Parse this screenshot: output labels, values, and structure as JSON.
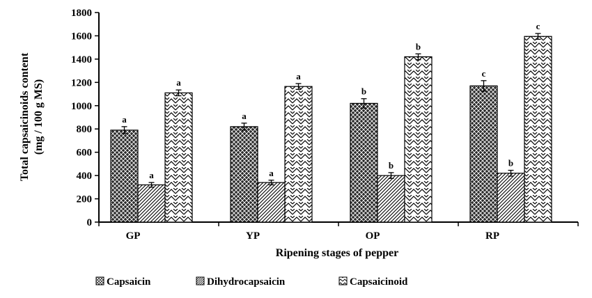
{
  "chart_data": {
    "type": "bar",
    "title": "",
    "xlabel": "Ripening stages of pepper",
    "ylabel_line1": "Total capsaicinoids content",
    "ylabel_line2": "(mg / 100 g MS)",
    "ylim": [
      0,
      1800
    ],
    "yticks": [
      0,
      200,
      400,
      600,
      800,
      1000,
      1200,
      1400,
      1600,
      1800
    ],
    "grid": false,
    "legend_position": "bottom",
    "categories": [
      "GP",
      "YP",
      "OP",
      "RP"
    ],
    "series": [
      {
        "name": "Capsaicin",
        "pattern": "crosshatch-dark",
        "values": [
          790,
          820,
          1020,
          1170
        ],
        "errors": [
          30,
          30,
          40,
          45
        ],
        "letters": [
          "a",
          "a",
          "b",
          "c"
        ]
      },
      {
        "name": "Dihydrocapsaicin",
        "pattern": "diagonal-lines",
        "values": [
          320,
          340,
          400,
          420
        ],
        "errors": [
          20,
          20,
          25,
          25
        ],
        "letters": [
          "a",
          "a",
          "b",
          "b"
        ]
      },
      {
        "name": "Capsaicinoid",
        "pattern": "zigzag",
        "values": [
          1110,
          1165,
          1420,
          1595
        ],
        "errors": [
          25,
          25,
          25,
          25
        ],
        "letters": [
          "a",
          "a",
          "b",
          "c"
        ]
      }
    ]
  },
  "colors": {
    "axis": "#000000",
    "bar_stroke": "#000000",
    "dark_fill": "#1a1a1a",
    "light_fill": "#ffffff"
  }
}
